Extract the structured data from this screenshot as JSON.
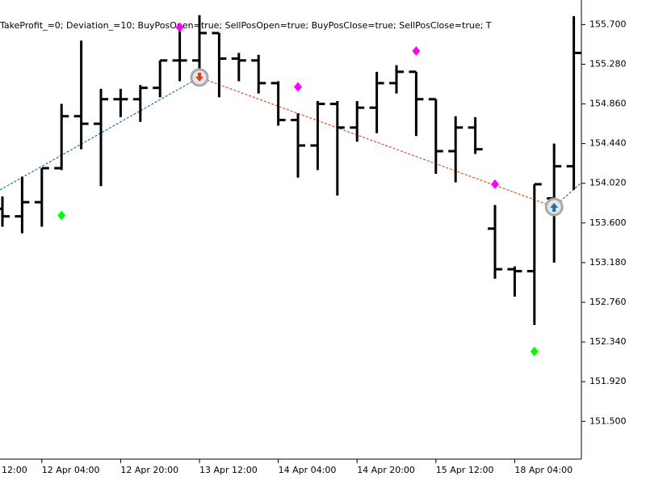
{
  "chart_data": {
    "type": "ohlc",
    "title": "TakeProfit_=0; Deviation_=10; BuyPosOpen=true; SellPosOpen=true; BuyPosClose=true; SellPosClose=true; T",
    "color": "#000000",
    "open": [
      153.75,
      153.67,
      153.82,
      154.18,
      154.73,
      154.65,
      154.91,
      154.91,
      155.03,
      155.32,
      155.32,
      155.61,
      155.34,
      155.32,
      155.08,
      154.69,
      154.42,
      154.86,
      154.61,
      154.82,
      155.08,
      155.2,
      154.91,
      154.36,
      154.61,
      153.54,
      153.11,
      153.09,
      153.86,
      154.2
    ],
    "high": [
      153.88,
      154.09,
      154.18,
      154.86,
      155.53,
      155.02,
      155.02,
      155.06,
      155.32,
      155.66,
      155.8,
      155.61,
      155.4,
      155.38,
      155.1,
      154.76,
      154.89,
      154.89,
      154.89,
      155.2,
      155.27,
      155.2,
      154.91,
      154.73,
      154.72,
      153.79,
      153.14,
      154.01,
      154.44,
      155.79
    ],
    "low": [
      153.56,
      153.49,
      153.56,
      154.16,
      154.38,
      153.99,
      154.72,
      154.67,
      154.93,
      155.1,
      155.19,
      154.93,
      155.1,
      154.97,
      154.63,
      154.08,
      154.16,
      153.89,
      154.46,
      154.55,
      154.97,
      154.52,
      154.12,
      154.03,
      154.33,
      153.01,
      152.82,
      152.52,
      153.18,
      153.95
    ],
    "close": [
      153.67,
      153.82,
      154.18,
      154.73,
      154.65,
      154.91,
      154.91,
      155.03,
      155.32,
      155.32,
      155.61,
      155.34,
      155.32,
      155.08,
      154.69,
      154.42,
      154.86,
      154.61,
      154.82,
      155.08,
      155.2,
      154.91,
      154.36,
      154.61,
      154.38,
      153.11,
      153.09,
      154.01,
      154.2,
      155.4
    ],
    "xticks": [
      {
        "value": -2,
        "label": "12:00"
      },
      {
        "value": 2,
        "label": "12 Apr 04:00"
      },
      {
        "value": 6,
        "label": "12 Apr 20:00"
      },
      {
        "value": 10,
        "label": "13 Apr 12:00"
      },
      {
        "value": 14,
        "label": "14 Apr 04:00"
      },
      {
        "value": 18,
        "label": "14 Apr 20:00"
      },
      {
        "value": 22,
        "label": "15 Apr 12:00"
      },
      {
        "value": 26,
        "label": "18 Apr 04:00"
      }
    ],
    "ylim": [
      151.1,
      155.96
    ],
    "yticks": [
      {
        "value": 155.7,
        "label": "155.700"
      },
      {
        "value": 155.28,
        "label": "155.280"
      },
      {
        "value": 154.86,
        "label": "154.860"
      },
      {
        "value": 154.44,
        "label": "154.440"
      },
      {
        "value": 154.02,
        "label": "154.020"
      },
      {
        "value": 153.6,
        "label": "153.600"
      },
      {
        "value": 153.18,
        "label": "153.180"
      },
      {
        "value": 152.76,
        "label": "152.760"
      },
      {
        "value": 152.34,
        "label": "152.340"
      },
      {
        "value": 151.92,
        "label": "151.920"
      },
      {
        "value": 151.5,
        "label": "151.500"
      }
    ],
    "sell_signals": {
      "color": "#ff00ff",
      "x": [
        9,
        15,
        21,
        25
      ],
      "values": [
        155.67,
        155.04,
        155.42,
        154.01
      ]
    },
    "buy_signals": {
      "color": "#00ff00",
      "x": [
        3,
        27
      ],
      "values": [
        153.68,
        152.24
      ]
    },
    "deals": {
      "x": [
        10,
        28
      ],
      "values": [
        155.14,
        153.77
      ],
      "directions": [
        "sell",
        "buy"
      ]
    },
    "trade_lines": [
      {
        "color": "#1e6fb4",
        "x": [
          -0.12,
          10
        ],
        "values": [
          153.95,
          155.14
        ]
      },
      {
        "color": "#e2502a",
        "x": [
          10,
          28
        ],
        "values": [
          155.14,
          153.77
        ]
      },
      {
        "color": "#1e6fb4",
        "x": [
          28,
          29.4
        ],
        "values": [
          153.77,
          154.03
        ]
      }
    ]
  }
}
